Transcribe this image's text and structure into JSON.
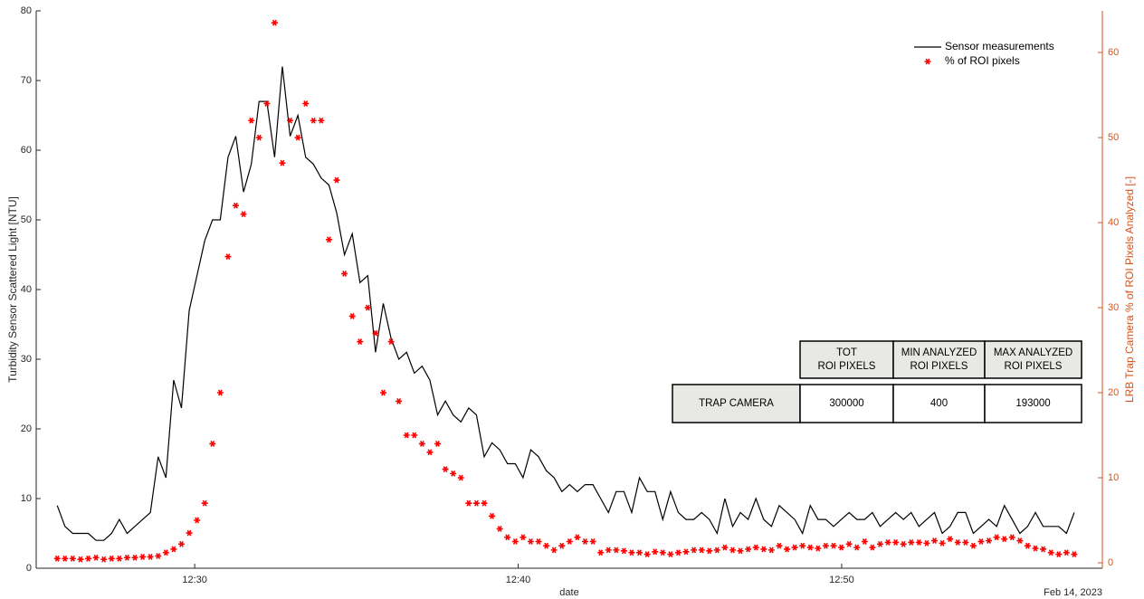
{
  "chart_data": {
    "type": "line",
    "xlabel": "date",
    "ylabel": "Turbidity Sensor Scattered Light [NTU]",
    "y2label": "LRB Trap Camera % of ROI Pixels Analyzed [-]",
    "annotation": "Feb 14, 2023",
    "legend": "upper right",
    "xlim": [
      25.1,
      58.06
    ],
    "xticks": [
      {
        "value": 30,
        "label": "12:30"
      },
      {
        "value": 40,
        "label": "12:40"
      },
      {
        "value": 50,
        "label": "12:50"
      }
    ],
    "ylim": [
      0,
      80
    ],
    "yticks": [
      0,
      10,
      20,
      30,
      40,
      50,
      60,
      70,
      80
    ],
    "y2lim": [
      -0.64,
      64.9
    ],
    "y2ticks": [
      0,
      10,
      20,
      30,
      40,
      50,
      60
    ],
    "y2color": "#d95319",
    "x": [
      25.75,
      25.99,
      26.23,
      26.47,
      26.71,
      26.95,
      27.19,
      27.43,
      27.67,
      27.91,
      28.15,
      28.39,
      28.63,
      28.87,
      29.11,
      29.35,
      29.59,
      29.83,
      30.07,
      30.31,
      30.55,
      30.79,
      31.03,
      31.27,
      31.51,
      31.75,
      31.99,
      32.23,
      32.47,
      32.71,
      32.95,
      33.19,
      33.43,
      33.67,
      33.91,
      34.15,
      34.39,
      34.63,
      34.87,
      35.11,
      35.35,
      35.59,
      35.83,
      36.07,
      36.31,
      36.55,
      36.79,
      37.03,
      37.27,
      37.51,
      37.75,
      37.99,
      38.23,
      38.47,
      38.71,
      38.95,
      39.19,
      39.43,
      39.67,
      39.91,
      40.15,
      40.39,
      40.63,
      40.87,
      41.11,
      41.35,
      41.59,
      41.83,
      42.07,
      42.31,
      42.55,
      42.79,
      43.03,
      43.27,
      43.51,
      43.75,
      43.99,
      44.23,
      44.47,
      44.71,
      44.95,
      45.19,
      45.43,
      45.67,
      45.91,
      46.15,
      46.39,
      46.63,
      46.87,
      47.11,
      47.35,
      47.59,
      47.83,
      48.07,
      48.31,
      48.55,
      48.79,
      49.03,
      49.27,
      49.51,
      49.75,
      49.99,
      50.23,
      50.47,
      50.71,
      50.95,
      51.19,
      51.43,
      51.67,
      51.91,
      52.15,
      52.39,
      52.63,
      52.87,
      53.11,
      53.35,
      53.59,
      53.83,
      54.07,
      54.31,
      54.55,
      54.79,
      55.03,
      55.27,
      55.51,
      55.75,
      55.99,
      56.23,
      56.47,
      56.71,
      56.95,
      57.19
    ],
    "series": [
      {
        "name": "Sensor measurements",
        "type": "line",
        "color": "#000000",
        "values": [
          9,
          6,
          5,
          5,
          5,
          4,
          4,
          5,
          7,
          5,
          6,
          7,
          8,
          16,
          13,
          27,
          23,
          37,
          42,
          47,
          50,
          50,
          59,
          62,
          54,
          58,
          67,
          67,
          59,
          72,
          62,
          65,
          59,
          58,
          56,
          55,
          51,
          45,
          48,
          41,
          42,
          31,
          38,
          33,
          30,
          31,
          28,
          29,
          27,
          22,
          24,
          22,
          21,
          23,
          22,
          16,
          18,
          17,
          15,
          15,
          13,
          17,
          16,
          14,
          13,
          11,
          12,
          11,
          12,
          12,
          10,
          8,
          11,
          11,
          8,
          13,
          11,
          11,
          7,
          11,
          8,
          7,
          7,
          8,
          7,
          5,
          10,
          6,
          8,
          7,
          10,
          7,
          6,
          9,
          8,
          7,
          5,
          9,
          7,
          7,
          6,
          7,
          8,
          7,
          7,
          8,
          6,
          7,
          8,
          7,
          8,
          6,
          7,
          8,
          5,
          6,
          8,
          8,
          5,
          6,
          7,
          6,
          9,
          7,
          5,
          6,
          8,
          6,
          6,
          6,
          5,
          8
        ]
      },
      {
        "name": "% of ROI pixels",
        "type": "scatter",
        "axis": "y2",
        "color": "#ff0000",
        "values": [
          0.5,
          0.5,
          0.5,
          0.4,
          0.5,
          0.6,
          0.4,
          0.5,
          0.5,
          0.6,
          0.6,
          0.7,
          0.7,
          0.8,
          1.2,
          1.6,
          2.2,
          3.5,
          5,
          7,
          14,
          20,
          36,
          42,
          41,
          52,
          50,
          54,
          63.5,
          47,
          52,
          50,
          54,
          52,
          52,
          38,
          45,
          34,
          29,
          26,
          30,
          27,
          20,
          26,
          19,
          15,
          15,
          14,
          13,
          14,
          11,
          10.5,
          10,
          7,
          7,
          7,
          5.5,
          4,
          3,
          2.5,
          3,
          2.5,
          2.5,
          2,
          1.5,
          2,
          2.5,
          3,
          2.5,
          2.5,
          1.2,
          1.5,
          1.5,
          1.4,
          1.2,
          1.2,
          1,
          1.3,
          1.2,
          1,
          1.2,
          1.3,
          1.5,
          1.5,
          1.4,
          1.5,
          1.8,
          1.5,
          1.4,
          1.6,
          1.8,
          1.6,
          1.5,
          2,
          1.6,
          1.8,
          2,
          1.8,
          1.7,
          2,
          2,
          1.8,
          2.2,
          1.8,
          2.5,
          1.8,
          2.2,
          2.4,
          2.4,
          2.2,
          2.4,
          2.4,
          2.3,
          2.6,
          2.3,
          2.8,
          2.4,
          2.4,
          2,
          2.5,
          2.6,
          3,
          2.8,
          3,
          2.6,
          2,
          1.7,
          1.6,
          1.2,
          1,
          1.2,
          1
        ]
      }
    ]
  },
  "table": {
    "columns": [
      [
        "TOT",
        "ROI PIXELS"
      ],
      [
        "MIN ANALYZED",
        "ROI PIXELS"
      ],
      [
        "MAX ANALYZED",
        "ROI PIXELS"
      ]
    ],
    "rows": [
      {
        "label": "TRAP CAMERA",
        "values": [
          300000,
          400,
          193000
        ]
      }
    ]
  }
}
